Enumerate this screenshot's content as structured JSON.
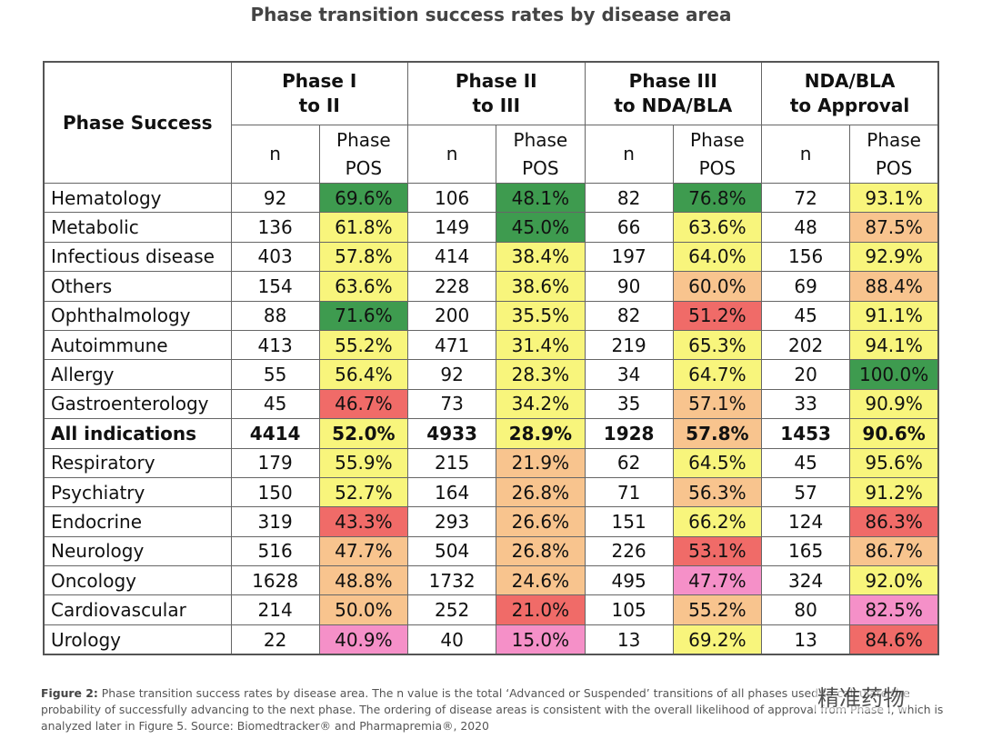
{
  "title": "Phase transition success rates by disease area",
  "table": {
    "header": {
      "corner": "Phase Success",
      "groups": [
        [
          "Phase I",
          "to II"
        ],
        [
          "Phase II",
          "to III"
        ],
        [
          "Phase III",
          "to NDA/BLA"
        ],
        [
          "NDA/BLA",
          "to Approval"
        ]
      ],
      "sub": [
        "n",
        [
          "Phase",
          "POS"
        ]
      ]
    },
    "palette": {
      "G": "#3e9b4f",
      "Y": "#f8f57c",
      "O": "#f8c48e",
      "R": "#f06b68",
      "P": "#f590c8"
    },
    "rows": [
      {
        "label": "Hematology",
        "cells": [
          "92",
          "69.6%",
          "106",
          "48.1%",
          "82",
          "76.8%",
          "72",
          "93.1%"
        ],
        "colors": [
          "G",
          "G",
          "G",
          "Y"
        ]
      },
      {
        "label": "Metabolic",
        "cells": [
          "136",
          "61.8%",
          "149",
          "45.0%",
          "66",
          "63.6%",
          "48",
          "87.5%"
        ],
        "colors": [
          "Y",
          "G",
          "Y",
          "O"
        ]
      },
      {
        "label": "Infectious disease",
        "cells": [
          "403",
          "57.8%",
          "414",
          "38.4%",
          "197",
          "64.0%",
          "156",
          "92.9%"
        ],
        "colors": [
          "Y",
          "Y",
          "Y",
          "Y"
        ]
      },
      {
        "label": "Others",
        "cells": [
          "154",
          "63.6%",
          "228",
          "38.6%",
          "90",
          "60.0%",
          "69",
          "88.4%"
        ],
        "colors": [
          "Y",
          "Y",
          "O",
          "O"
        ]
      },
      {
        "label": "Ophthalmology",
        "cells": [
          "88",
          "71.6%",
          "200",
          "35.5%",
          "82",
          "51.2%",
          "45",
          "91.1%"
        ],
        "colors": [
          "G",
          "Y",
          "R",
          "Y"
        ]
      },
      {
        "label": "Autoimmune",
        "cells": [
          "413",
          "55.2%",
          "471",
          "31.4%",
          "219",
          "65.3%",
          "202",
          "94.1%"
        ],
        "colors": [
          "Y",
          "Y",
          "Y",
          "Y"
        ]
      },
      {
        "label": "Allergy",
        "cells": [
          "55",
          "56.4%",
          "92",
          "28.3%",
          "34",
          "64.7%",
          "20",
          "100.0%"
        ],
        "colors": [
          "Y",
          "Y",
          "Y",
          "G"
        ]
      },
      {
        "label": "Gastroenterology",
        "cells": [
          "45",
          "46.7%",
          "73",
          "34.2%",
          "35",
          "57.1%",
          "33",
          "90.9%"
        ],
        "colors": [
          "R",
          "Y",
          "O",
          "Y"
        ]
      },
      {
        "label": "All indications",
        "bold": true,
        "cells": [
          "4414",
          "52.0%",
          "4933",
          "28.9%",
          "1928",
          "57.8%",
          "1453",
          "90.6%"
        ],
        "colors": [
          "Y",
          "Y",
          "O",
          "Y"
        ]
      },
      {
        "label": "Respiratory",
        "cells": [
          "179",
          "55.9%",
          "215",
          "21.9%",
          "62",
          "64.5%",
          "45",
          "95.6%"
        ],
        "colors": [
          "Y",
          "O",
          "Y",
          "Y"
        ]
      },
      {
        "label": "Psychiatry",
        "cells": [
          "150",
          "52.7%",
          "164",
          "26.8%",
          "71",
          "56.3%",
          "57",
          "91.2%"
        ],
        "colors": [
          "Y",
          "O",
          "O",
          "Y"
        ]
      },
      {
        "label": "Endocrine",
        "cells": [
          "319",
          "43.3%",
          "293",
          "26.6%",
          "151",
          "66.2%",
          "124",
          "86.3%"
        ],
        "colors": [
          "R",
          "O",
          "Y",
          "R"
        ]
      },
      {
        "label": "Neurology",
        "cells": [
          "516",
          "47.7%",
          "504",
          "26.8%",
          "226",
          "53.1%",
          "165",
          "86.7%"
        ],
        "colors": [
          "O",
          "O",
          "R",
          "O"
        ]
      },
      {
        "label": "Oncology",
        "cells": [
          "1628",
          "48.8%",
          "1732",
          "24.6%",
          "495",
          "47.7%",
          "324",
          "92.0%"
        ],
        "colors": [
          "O",
          "O",
          "P",
          "Y"
        ]
      },
      {
        "label": "Cardiovascular",
        "cells": [
          "214",
          "50.0%",
          "252",
          "21.0%",
          "105",
          "55.2%",
          "80",
          "82.5%"
        ],
        "colors": [
          "O",
          "R",
          "O",
          "P"
        ]
      },
      {
        "label": "Urology",
        "cells": [
          "22",
          "40.9%",
          "40",
          "15.0%",
          "13",
          "69.2%",
          "13",
          "84.6%"
        ],
        "colors": [
          "P",
          "P",
          "Y",
          "R"
        ]
      }
    ]
  },
  "caption": {
    "label": "Figure 2:",
    "text": "Phase transition success rates by disease area. The n value is the total ‘Advanced or Suspended’ transitions of all phases used to calculate the probability of successfully advancing to the next phase. The ordering of disease areas is consistent with the overall likelihood of approval from Phase I, which is analyzed later in Figure 5. Source: Biomedtracker® and Pharmapremia®, 2020"
  },
  "watermark": "精准药物"
}
